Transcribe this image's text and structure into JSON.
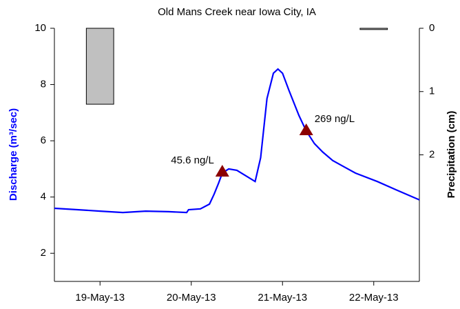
{
  "chart_data": {
    "type": "line",
    "title": "Old Mans Creek near Iowa City, IA",
    "y_label": "Discharge (m³/sec)",
    "y2_label": "Precipitation (cm)",
    "xlim": [
      18.5,
      22.5
    ],
    "xticks": [
      {
        "value": 19,
        "label": "19-May-13"
      },
      {
        "value": 20,
        "label": "20-May-13"
      },
      {
        "value": 21,
        "label": "21-May-13"
      },
      {
        "value": 22,
        "label": "22-May-13"
      }
    ],
    "ylim": [
      1,
      10
    ],
    "yticks": [
      2,
      4,
      6,
      8,
      10
    ],
    "y2lim": [
      4,
      0
    ],
    "y2ticks": [
      0,
      1,
      2
    ],
    "discharge": {
      "color": "#0000ff",
      "x": [
        18.5,
        18.75,
        19.0,
        19.25,
        19.5,
        19.75,
        19.95,
        19.97,
        20.1,
        20.2,
        20.25,
        20.3,
        20.34,
        20.41,
        20.5,
        20.6,
        20.7,
        20.76,
        20.83,
        20.9,
        20.95,
        21.0,
        21.07,
        21.18,
        21.26,
        21.35,
        21.44,
        21.55,
        21.66,
        21.8,
        22.04,
        22.25,
        22.5
      ],
      "values": [
        3.6,
        3.55,
        3.5,
        3.45,
        3.5,
        3.48,
        3.45,
        3.55,
        3.58,
        3.75,
        4.1,
        4.5,
        4.85,
        5.0,
        4.95,
        4.75,
        4.55,
        5.4,
        7.5,
        8.4,
        8.55,
        8.4,
        7.8,
        6.9,
        6.35,
        5.9,
        5.6,
        5.3,
        5.1,
        4.85,
        4.55,
        4.25,
        3.9
      ]
    },
    "precipitation": {
      "axis": "y2",
      "color": "#c0c0c0",
      "x": [
        19.0,
        22.0
      ],
      "values": [
        1.2,
        0.02
      ]
    },
    "samples": {
      "color": "#8b0000",
      "x": [
        20.34,
        21.26
      ],
      "values": [
        4.9,
        6.37
      ],
      "labels": [
        "45.6 ng/L",
        "269 ng/L"
      ]
    }
  }
}
